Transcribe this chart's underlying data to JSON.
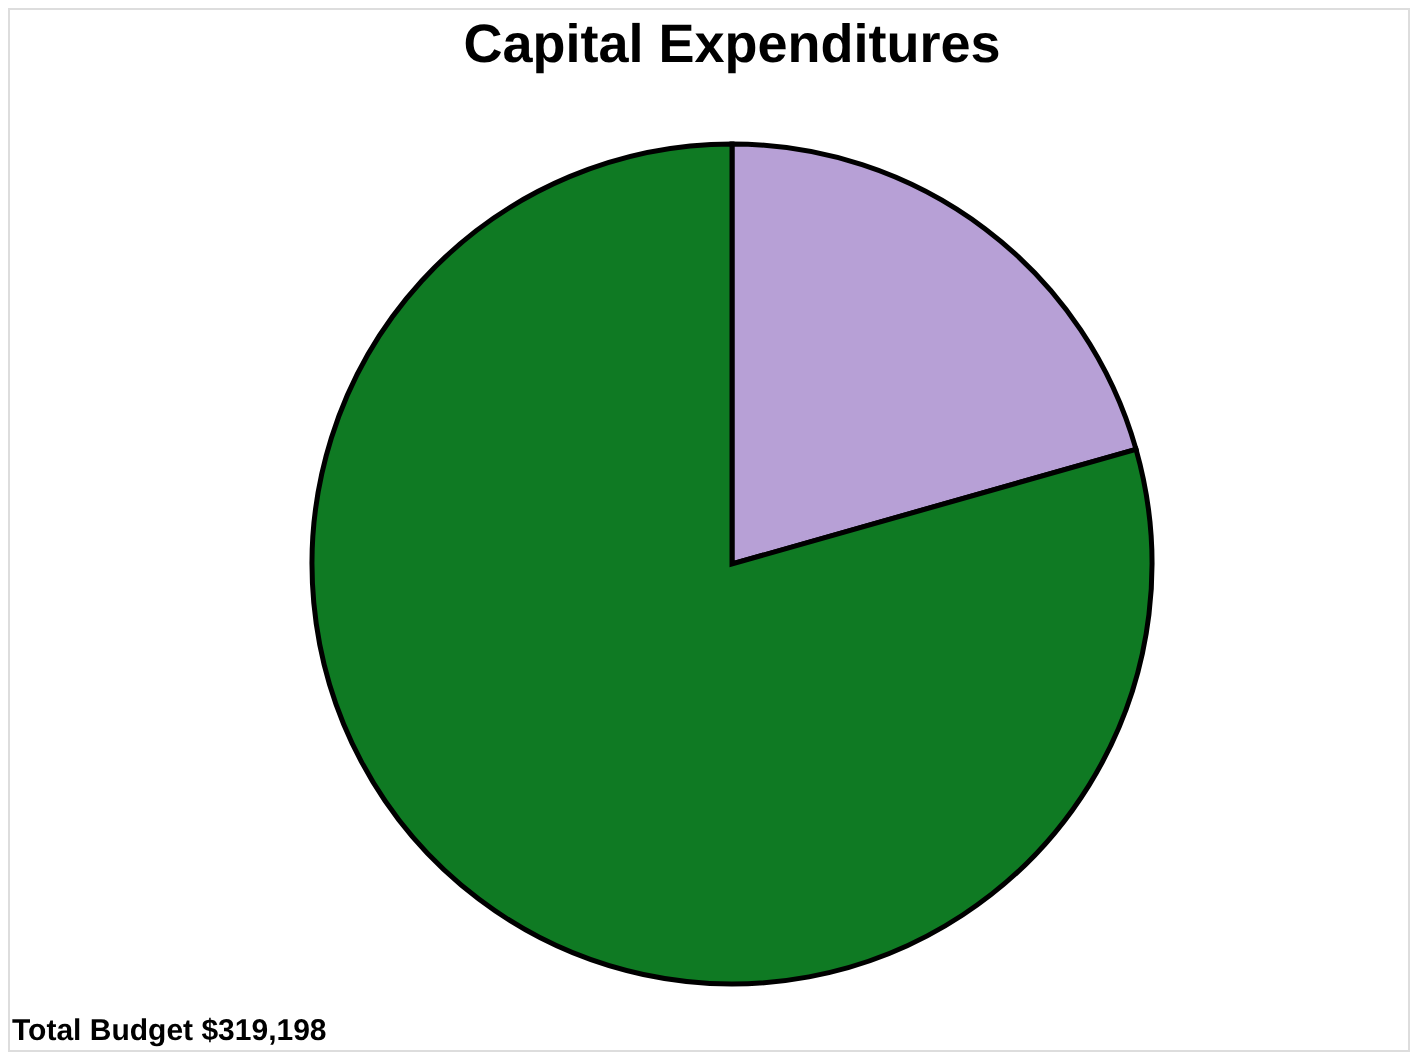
{
  "chart_data": {
    "type": "pie",
    "title": "Capital Expenditures",
    "categories": [
      null,
      null
    ],
    "values": [
      20.6,
      79.4
    ],
    "colors": [
      "#b7a0d6",
      "#0f7a23"
    ],
    "legend": false,
    "annotations": [
      "Total Budget  $319,198"
    ]
  }
}
